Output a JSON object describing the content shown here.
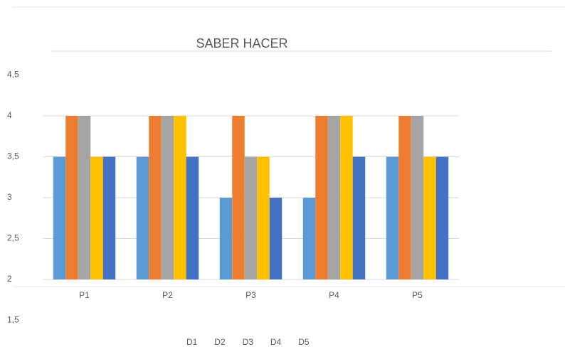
{
  "chart_data": {
    "type": "bar",
    "title": "SABER HACER",
    "categories": [
      "P1",
      "P2",
      "P3",
      "P4",
      "P5"
    ],
    "series": [
      {
        "name": "D1",
        "color": "#5b9bd5",
        "values": [
          3.5,
          3.5,
          3,
          3,
          3.5
        ]
      },
      {
        "name": "D2",
        "color": "#ed7d31",
        "values": [
          4,
          4,
          4,
          4,
          4
        ]
      },
      {
        "name": "D3",
        "color": "#a5a5a5",
        "values": [
          4,
          4,
          3.5,
          4,
          4
        ]
      },
      {
        "name": "D4",
        "color": "#ffc000",
        "values": [
          3.5,
          4,
          3.5,
          4,
          3.5
        ]
      },
      {
        "name": "D5",
        "color": "#4472c4",
        "values": [
          3.5,
          3.5,
          3,
          3.5,
          3.5
        ]
      }
    ],
    "ylim": [
      1.5,
      4.5
    ],
    "yticks": [
      {
        "value": 1.5,
        "label": "1,5"
      },
      2,
      {
        "value": 2.5,
        "label": "2,5"
      },
      3,
      {
        "value": 3.5,
        "label": "3,5"
      },
      4,
      {
        "value": 4.5,
        "label": "4,5"
      }
    ],
    "x_axis_crosses": 2,
    "grid": true
  }
}
